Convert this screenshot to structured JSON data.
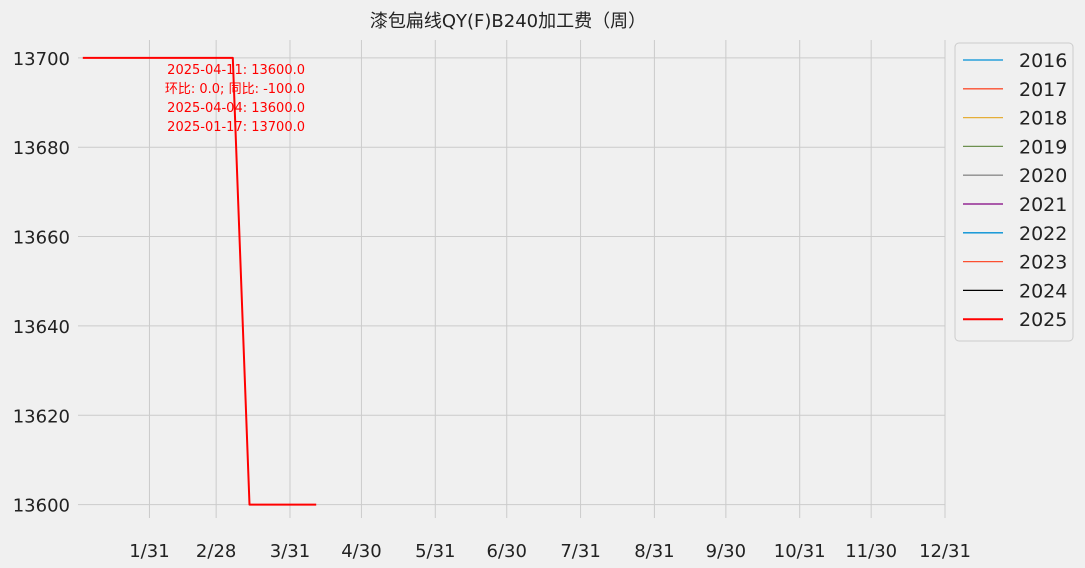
{
  "chart_data": {
    "type": "line",
    "title": "漆包扁线QY(F)B240加工费（周）",
    "xlabel": "",
    "ylabel": "",
    "x_ticks": [
      "1/31",
      "2/28",
      "3/31",
      "4/30",
      "5/31",
      "6/30",
      "7/31",
      "8/31",
      "9/30",
      "10/31",
      "11/30",
      "12/31"
    ],
    "x_tick_days": [
      31,
      59,
      90,
      120,
      151,
      181,
      212,
      243,
      273,
      304,
      334,
      365
    ],
    "xlim_days": [
      1,
      365
    ],
    "ylim": [
      13597,
      13704
    ],
    "y_ticks": [
      13600,
      13620,
      13640,
      13660,
      13680,
      13700
    ],
    "grid": true,
    "legend_position": "outside-top-right",
    "series": [
      {
        "name": "2016",
        "color": "#008fd5",
        "points": []
      },
      {
        "name": "2017",
        "color": "#fc4f30",
        "points": []
      },
      {
        "name": "2018",
        "color": "#e5ae38",
        "points": []
      },
      {
        "name": "2019",
        "color": "#6d904f",
        "points": []
      },
      {
        "name": "2020",
        "color": "#8b8b8b",
        "points": []
      },
      {
        "name": "2021",
        "color": "#800080",
        "points": []
      },
      {
        "name": "2022",
        "color": "#008fd5",
        "points": []
      },
      {
        "name": "2023",
        "color": "#fc4f30",
        "points": []
      },
      {
        "name": "2024",
        "color": "#000000",
        "points": []
      },
      {
        "name": "2025",
        "color": "#ff0000",
        "points": [
          {
            "date": "2025-01-03",
            "value": 13700
          },
          {
            "date": "2025-01-10",
            "value": 13700
          },
          {
            "date": "2025-01-17",
            "value": 13700
          },
          {
            "date": "2025-01-24",
            "value": 13700
          },
          {
            "date": "2025-01-31",
            "value": 13700
          },
          {
            "date": "2025-02-07",
            "value": 13700
          },
          {
            "date": "2025-02-14",
            "value": 13700
          },
          {
            "date": "2025-02-21",
            "value": 13700
          },
          {
            "date": "2025-02-28",
            "value": 13700
          },
          {
            "date": "2025-03-07",
            "value": 13700
          },
          {
            "date": "2025-03-14",
            "value": 13600
          },
          {
            "date": "2025-03-21",
            "value": 13600
          },
          {
            "date": "2025-03-28",
            "value": 13600
          },
          {
            "date": "2025-04-04",
            "value": 13600
          },
          {
            "date": "2025-04-11",
            "value": 13600
          }
        ]
      }
    ],
    "annotations": [
      "2025-04-11: 13600.0",
      "环比: 0.0; 同比: -100.0",
      "2025-04-04: 13600.0",
      "2025-01-17: 13700.0"
    ],
    "annotation_color": "#ff0000"
  }
}
